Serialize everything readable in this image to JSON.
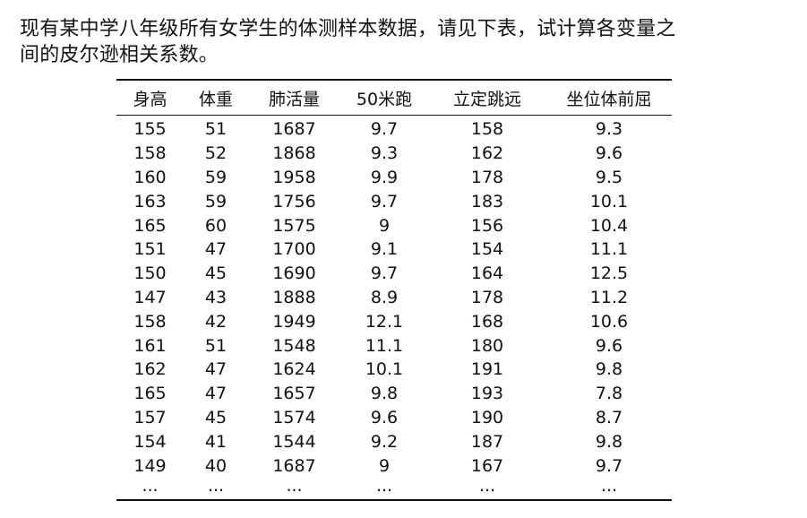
{
  "intro": {
    "line1": "现有某中学八年级所有女学生的体测样本数据，请见下表，试计算各变量之",
    "line2": "间的皮尔逊相关系数。"
  },
  "table": {
    "headers": [
      "身高",
      "体重",
      "肺活量",
      "50米跑",
      "立定跳远",
      "坐位体前屈"
    ],
    "rows": [
      [
        "155",
        "51",
        "1687",
        "9.7",
        "158",
        "9.3"
      ],
      [
        "158",
        "52",
        "1868",
        "9.3",
        "162",
        "9.6"
      ],
      [
        "160",
        "59",
        "1958",
        "9.9",
        "178",
        "9.5"
      ],
      [
        "163",
        "59",
        "1756",
        "9.7",
        "183",
        "10.1"
      ],
      [
        "165",
        "60",
        "1575",
        "9",
        "156",
        "10.4"
      ],
      [
        "151",
        "47",
        "1700",
        "9.1",
        "154",
        "11.1"
      ],
      [
        "150",
        "45",
        "1690",
        "9.7",
        "164",
        "12.5"
      ],
      [
        "147",
        "43",
        "1888",
        "8.9",
        "178",
        "11.2"
      ],
      [
        "158",
        "42",
        "1949",
        "12.1",
        "168",
        "10.6"
      ],
      [
        "161",
        "51",
        "1548",
        "11.1",
        "180",
        "9.6"
      ],
      [
        "162",
        "47",
        "1624",
        "10.1",
        "191",
        "9.8"
      ],
      [
        "165",
        "47",
        "1657",
        "9.8",
        "193",
        "7.8"
      ],
      [
        "157",
        "45",
        "1574",
        "9.6",
        "190",
        "8.7"
      ],
      [
        "154",
        "41",
        "1544",
        "9.2",
        "187",
        "9.8"
      ],
      [
        "149",
        "40",
        "1687",
        "9",
        "167",
        "9.7"
      ],
      [
        "...",
        "...",
        "...",
        "...",
        "...",
        "..."
      ]
    ]
  }
}
